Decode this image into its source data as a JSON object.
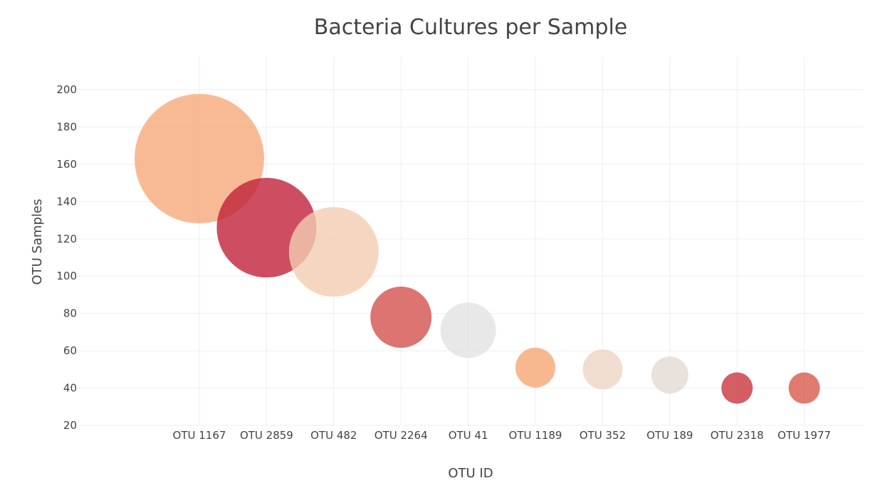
{
  "chart_data": {
    "type": "scatter",
    "subtype": "bubble",
    "title": "Bacteria Cultures per Sample",
    "xlabel": "OTU ID",
    "ylabel": "OTU Samples",
    "categories": [
      "OTU 1167",
      "OTU 2859",
      "OTU 482",
      "OTU 2264",
      "OTU 41",
      "OTU 1189",
      "OTU 352",
      "OTU 189",
      "OTU 2318",
      "OTU 1977"
    ],
    "values": [
      163,
      126,
      113,
      78,
      71,
      51,
      50,
      47,
      40,
      40
    ],
    "colors": [
      "#f6a97a",
      "#c02238",
      "#f3cdb1",
      "#d3514d",
      "#e2e2e2",
      "#f6a673",
      "#ecd4c4",
      "#e4dbd3",
      "#c9363c",
      "#d95a4b"
    ],
    "opacity": [
      0.8,
      0.8,
      0.8,
      0.8,
      0.8,
      0.8,
      0.8,
      0.8,
      0.8,
      0.8
    ],
    "ylim": [
      20,
      215
    ],
    "yticks": [
      20,
      40,
      60,
      80,
      100,
      120,
      140,
      160,
      180,
      200
    ],
    "grid": true,
    "legend": "none"
  }
}
